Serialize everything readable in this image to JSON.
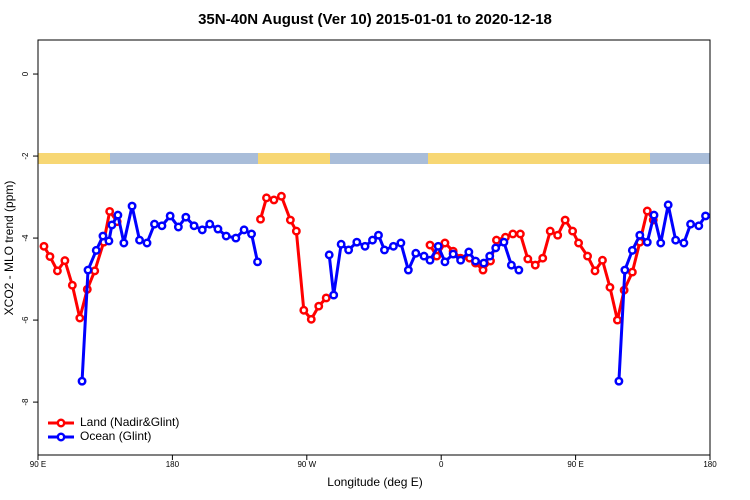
{
  "chart_data": {
    "type": "line",
    "title": "35N-40N August (Ver 10)   2015-01-01 to 2020-12-18",
    "x_label": "Longitude (deg E)",
    "y_label": "XCO2 - MLO trend (ppm)",
    "xlim": [
      90,
      540
    ],
    "xticks": [
      {
        "value": 90,
        "label": "90 E"
      },
      {
        "value": 180,
        "label": "180"
      },
      {
        "value": 270,
        "label": "90 W"
      },
      {
        "value": 360,
        "label": "0"
      },
      {
        "value": 450,
        "label": "90 E"
      },
      {
        "value": 540,
        "label": "180"
      }
    ],
    "ylim": [
      -9.29,
      0.83
    ],
    "yticks": [
      0,
      -2,
      -4,
      -6,
      -8
    ],
    "grid": false,
    "legend": "bottom-left",
    "series": [
      {
        "name": "Land (Nadir&Glint)",
        "color": "#ff0000",
        "x": [
          94,
          98,
          103,
          108,
          113,
          118,
          123,
          128,
          134,
          138,
          143,
          null,
          239,
          243,
          248,
          253,
          259,
          263,
          268,
          273,
          278,
          283,
          null,
          352.5,
          357,
          362.5,
          368,
          373,
          379,
          383,
          388,
          393,
          397,
          403,
          408,
          413,
          418,
          423,
          428,
          433,
          438,
          443,
          448,
          452,
          458,
          463,
          468,
          473,
          478,
          482.5,
          488,
          493,
          498,
          502
        ],
        "values": [
          -4.2,
          -4.45,
          -4.8,
          -4.55,
          -5.15,
          -5.95,
          -5.25,
          -4.8,
          -4.1,
          -3.35,
          -3.6,
          null,
          -3.54,
          -3.02,
          -3.07,
          -2.98,
          -3.56,
          -3.83,
          -5.76,
          -5.98,
          -5.66,
          -5.46,
          null,
          -4.17,
          -4.44,
          -4.12,
          -4.32,
          -4.49,
          -4.49,
          -4.61,
          -4.78,
          -4.56,
          -4.05,
          -3.98,
          -3.9,
          -3.9,
          -4.51,
          -4.66,
          -4.49,
          -3.83,
          -3.93,
          -3.56,
          -3.83,
          -4.12,
          -4.44,
          -4.8,
          -4.54,
          -5.2,
          -6.0,
          -5.27,
          -4.83,
          -4.1,
          -3.34,
          -3.56
        ]
      },
      {
        "name": "Ocean (Glint)",
        "color": "#0000ff",
        "x": [
          119.5,
          123.5,
          129,
          133.5,
          137.5,
          139.5,
          143.5,
          147.5,
          153,
          158,
          163,
          168,
          173,
          178.5,
          184,
          189,
          194.5,
          200,
          205,
          210.5,
          216,
          222.5,
          228,
          233,
          237,
          null,
          285,
          288,
          293,
          298,
          303.5,
          309,
          314,
          318,
          322,
          328,
          333,
          338,
          343,
          348.5,
          352.5,
          358,
          362.5,
          368,
          373,
          378.5,
          383,
          388.5,
          392.5,
          396.5,
          402,
          407,
          412,
          null,
          479,
          483,
          488,
          493,
          498,
          502.5,
          507,
          512,
          517,
          522.5,
          527,
          532.5,
          537
        ],
        "values": [
          -7.49,
          -4.78,
          -4.3,
          -3.95,
          -4.07,
          -3.68,
          -3.44,
          -4.12,
          -3.22,
          -4.05,
          -4.12,
          -3.66,
          -3.7,
          -3.46,
          -3.73,
          -3.49,
          -3.7,
          -3.8,
          -3.66,
          -3.78,
          -3.95,
          -4.0,
          -3.8,
          -3.9,
          -4.58,
          null,
          -4.41,
          -5.39,
          -4.15,
          -4.29,
          -4.1,
          -4.2,
          -4.05,
          -3.93,
          -4.29,
          -4.2,
          -4.12,
          -4.78,
          -4.37,
          -4.44,
          -4.54,
          -4.2,
          -4.58,
          -4.39,
          -4.54,
          -4.34,
          -4.56,
          -4.61,
          -4.44,
          -4.24,
          -4.1,
          -4.66,
          -4.78,
          null,
          -7.49,
          -4.78,
          -4.3,
          -3.93,
          -4.1,
          -3.44,
          -4.12,
          -3.19,
          -4.05,
          -4.12,
          -3.66,
          -3.7,
          -3.46
        ]
      }
    ]
  }
}
